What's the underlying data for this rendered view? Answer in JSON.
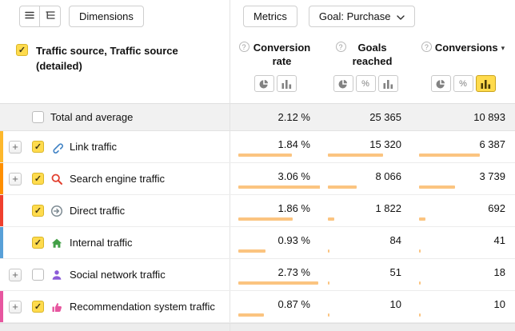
{
  "toolbar": {
    "dimensions": "Dimensions",
    "metrics": "Metrics",
    "goal": "Goal: Purchase"
  },
  "glyphs": {
    "check": "✓",
    "expand": "+",
    "question": "?",
    "percent": "%",
    "sort_desc": "▾"
  },
  "colors": {
    "accent": "#ffdb4d",
    "bar_fill": "#fbc480",
    "total_row_bg": "#f1f1f1"
  },
  "header": {
    "select_all_checked": true,
    "dimension_title": "Traffic source, Traffic source (detailed)",
    "columns": [
      {
        "label": "Conversion rate"
      },
      {
        "label": "Goals reached"
      },
      {
        "label": "Conversions",
        "sort": "desc"
      }
    ]
  },
  "table": {
    "total": {
      "label": "Total and average",
      "checked": false,
      "values": [
        "2.12 %",
        "25 365",
        "10 893"
      ]
    },
    "rows": [
      {
        "label": "Link traffic",
        "icon": "link-icon",
        "strip": "#fdb82c",
        "expandable": true,
        "checked": true,
        "values": [
          "1.84 %",
          "15 320",
          "6 387"
        ],
        "bars": [
          60.1,
          60.4,
          58.6
        ]
      },
      {
        "label": "Search engine traffic",
        "icon": "search-icon",
        "strip": "#ff8f00",
        "expandable": true,
        "checked": true,
        "values": [
          "3.06 %",
          "8 066",
          "3 739"
        ],
        "bars": [
          100,
          31.8,
          34.3
        ]
      },
      {
        "label": "Direct traffic",
        "icon": "direct-arrow-icon",
        "strip": "#f0402e",
        "expandable": false,
        "checked": true,
        "values": [
          "1.86 %",
          "1 822",
          "692"
        ],
        "bars": [
          60.8,
          7.2,
          6.4
        ]
      },
      {
        "label": "Internal traffic",
        "icon": "home-icon",
        "strip": "#58a0d8",
        "expandable": false,
        "checked": true,
        "values": [
          "0.93 %",
          "84",
          "41"
        ],
        "bars": [
          30.4,
          0.4,
          0.4
        ]
      },
      {
        "label": "Social network traffic",
        "icon": "person-icon",
        "strip": null,
        "expandable": true,
        "checked": false,
        "values": [
          "2.73 %",
          "51",
          "18"
        ],
        "bars": [
          89.2,
          0.3,
          0.2
        ]
      },
      {
        "label": "Recommendation system traffic",
        "icon": "thumbs-up-icon",
        "strip": "#e7569f",
        "expandable": true,
        "checked": true,
        "values": [
          "0.87 %",
          "10",
          "10"
        ],
        "bars": [
          28.4,
          0.1,
          0.1
        ]
      }
    ]
  }
}
